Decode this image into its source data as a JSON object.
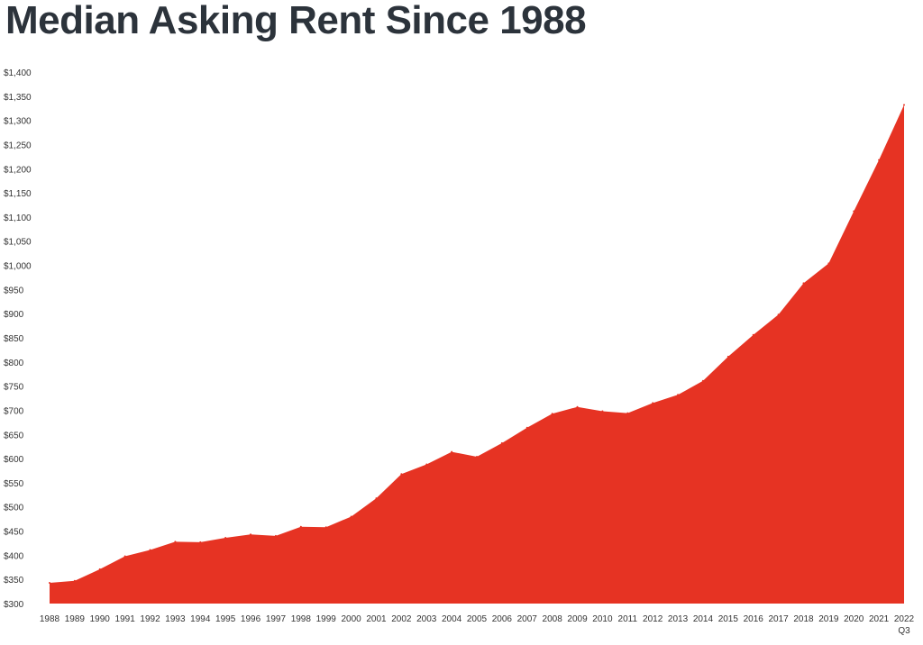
{
  "chart_data": {
    "type": "area",
    "title": "Median Asking Rent Since 1988",
    "xlabel": "",
    "ylabel": "",
    "color": "#e63323",
    "x": [
      "1988",
      "1989",
      "1990",
      "1991",
      "1992",
      "1993",
      "1994",
      "1995",
      "1996",
      "1997",
      "1998",
      "1999",
      "2000",
      "2001",
      "2002",
      "2003",
      "2004",
      "2005",
      "2006",
      "2007",
      "2008",
      "2009",
      "2010",
      "2011",
      "2012",
      "2013",
      "2014",
      "2015",
      "2016",
      "2017",
      "2018",
      "2019",
      "2020",
      "2021",
      "2022"
    ],
    "x_sublabels": {
      "2022": "Q3"
    },
    "values": [
      343,
      347,
      371,
      398,
      411,
      428,
      427,
      436,
      443,
      440,
      459,
      458,
      480,
      518,
      568,
      588,
      614,
      604,
      632,
      664,
      693,
      707,
      698,
      694,
      715,
      732,
      761,
      811,
      856,
      898,
      963,
      1004,
      1112,
      1218,
      1332
    ],
    "ylim": [
      300,
      1400
    ],
    "yticks": [
      "$300",
      "$350",
      "$400",
      "$450",
      "$500",
      "$550",
      "$600",
      "$650",
      "$700",
      "$750",
      "$800",
      "$850",
      "$900",
      "$950",
      "$1,000",
      "$1,050",
      "$1,100",
      "$1,150",
      "$1,200",
      "$1,250",
      "$1,300",
      "$1,350",
      "$1,400"
    ],
    "grid": false,
    "legend": "none"
  }
}
